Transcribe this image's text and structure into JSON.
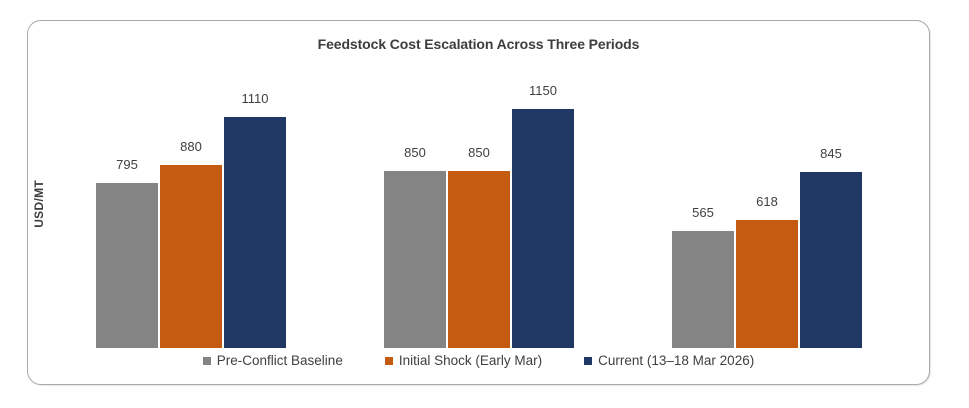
{
  "chart_data": {
    "type": "bar",
    "title": "Feedstock Cost Escalation Across Three Periods",
    "xlabel": "",
    "ylabel": "USD/MT",
    "categories": [
      "",
      "",
      ""
    ],
    "series": [
      {
        "name": "Pre-Conflict Baseline",
        "color": "#848484",
        "values": [
          795,
          850,
          565
        ]
      },
      {
        "name": "Initial Shock (Early Mar)",
        "color": "#C55A11",
        "values": [
          880,
          850,
          618
        ]
      },
      {
        "name": "Current (13–18 Mar 2026)",
        "color": "#1F3864",
        "values": [
          1110,
          1150,
          845
        ]
      }
    ],
    "data_labels_shown": true,
    "legend_position": "bottom",
    "grid": false,
    "axis_lines": false,
    "tick_labels_shown": false
  },
  "styles": {
    "text_color": "#404040",
    "title_color": "#3d3d3d",
    "frame_border_color": "#a9a9a9",
    "background": "#ffffff"
  }
}
